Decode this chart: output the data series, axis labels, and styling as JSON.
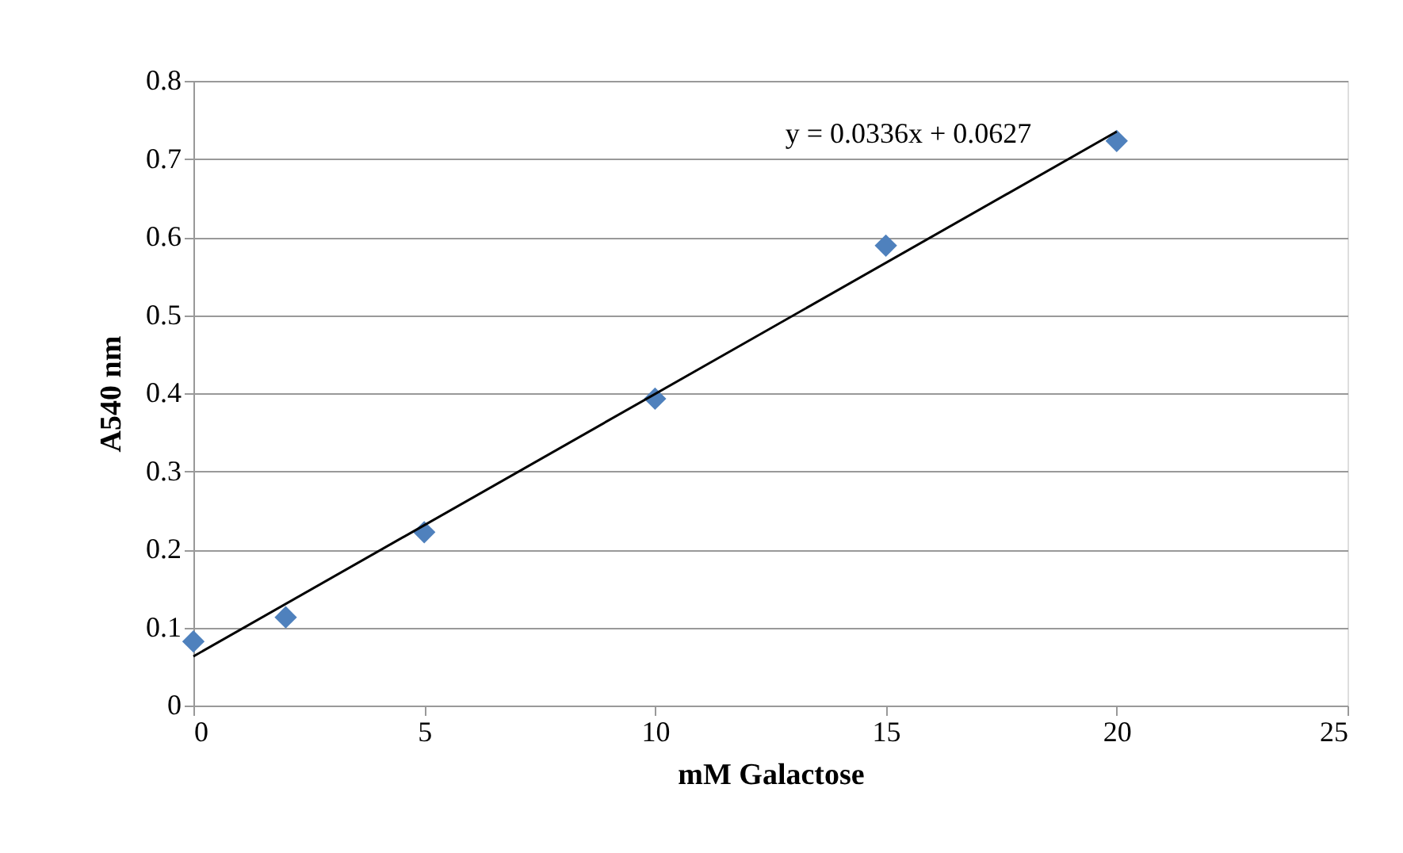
{
  "chart_data": {
    "type": "scatter",
    "xlabel": "mM Galactose",
    "ylabel": "A540 nm",
    "x": [
      0,
      2,
      5,
      10,
      15,
      20
    ],
    "series": [
      {
        "color": "#4f81bd",
        "marker": "diamond",
        "values": [
          0.082,
          0.113,
          0.222,
          0.393,
          0.589,
          0.723
        ]
      },
      {
        "type": "line",
        "color": "#000000",
        "x": [
          0,
          20
        ],
        "values": [
          0.063,
          0.735
        ],
        "line_style": "solid"
      }
    ],
    "xlim": [
      0,
      25
    ],
    "xticks": [
      0,
      5,
      10,
      15,
      20,
      25
    ],
    "ylim": [
      0,
      0.8
    ],
    "yticks": [
      {
        "value": 0,
        "label": "0"
      },
      0.1,
      0.2,
      0.3,
      0.4,
      0.5,
      0.6,
      0.7,
      0.8
    ],
    "grid": "y",
    "annotations": [
      "y = 0.0336x + 0.0627"
    ]
  }
}
